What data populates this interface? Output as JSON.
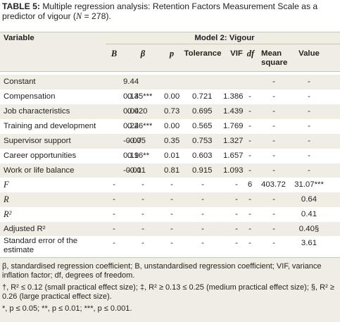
{
  "caption": {
    "label": "TABLE 5:",
    "text_1": " Multiple regression analysis: Retention Factors Measurement Scale as a predictor of vigour (",
    "n_symbol": "N",
    "text_2": " = 278)."
  },
  "header": {
    "variable": "Variable",
    "model": "Model 2: Vigour",
    "columns": [
      "B",
      "β",
      "p",
      "Tolerance",
      "VIF",
      "df",
      "Mean square",
      "Value"
    ]
  },
  "rows": [
    {
      "label": "Constant",
      "cells": [
        "9.44",
        "",
        "",
        "",
        "",
        "",
        "-",
        "-"
      ]
    },
    {
      "label": "Compensation",
      "cells": [
        "0.14",
        "0.35***",
        "0.00",
        "0.721",
        "1.386",
        "-",
        "-",
        "-"
      ]
    },
    {
      "label": "Job characteristics",
      "cells": [
        "0.04",
        "0.020",
        "0.73",
        "0.695",
        "1.439",
        "-",
        "-",
        "-"
      ]
    },
    {
      "label": "Training and development",
      "cells": [
        "0.24",
        "0.26***",
        "0.00",
        "0.565",
        "1.769",
        "-",
        "-",
        "-"
      ]
    },
    {
      "label": "Supervisor support",
      "cells": [
        "-0.07",
        "-0.05",
        "0.35",
        "0.753",
        "1.327",
        "-",
        "-",
        "-"
      ]
    },
    {
      "label": "Career opportunities",
      "cells": [
        "0.19",
        "0.16**",
        "0.01",
        "0.603",
        "1.657",
        "-",
        "-",
        "-"
      ]
    },
    {
      "label": "Work or life balance",
      "cells": [
        "-0.01",
        "-0.01",
        "0.81",
        "0.915",
        "1.093",
        "-",
        "-",
        "-"
      ]
    },
    {
      "label": "F",
      "cells": [
        "-",
        "-",
        "-",
        "-",
        "-",
        "6",
        "403.72",
        "31.07***"
      ]
    },
    {
      "label": "R",
      "cells": [
        "-",
        "-",
        "-",
        "-",
        "-",
        "-",
        "-",
        "0.64"
      ]
    },
    {
      "label": "R²",
      "cells": [
        "-",
        "-",
        "-",
        "-",
        "-",
        "-",
        "-",
        "0.41"
      ]
    },
    {
      "label": "Adjusted R²",
      "cells": [
        "-",
        "-",
        "-",
        "-",
        "-",
        "-",
        "-",
        "0.40§"
      ]
    },
    {
      "label": "Standard error of the estimate",
      "cells": [
        "-",
        "-",
        "-",
        "-",
        "-",
        "-",
        "-",
        "3.61"
      ]
    }
  ],
  "notes": [
    "β, standardised regression coefficient; B, unstandardised regression coefficient; VIF, variance inflation factor; df, degrees of freedom.",
    "†, R² ≤ 0.12 (small practical effect size); ‡, R² ≥ 0.13 ≤ 0.25 (medium practical effect size); §, R² ≥ 0.26 (large practical effect size).",
    "*, p ≤ 0.05; **, p ≤ 0.01; ***, p ≤ 0.001."
  ]
}
